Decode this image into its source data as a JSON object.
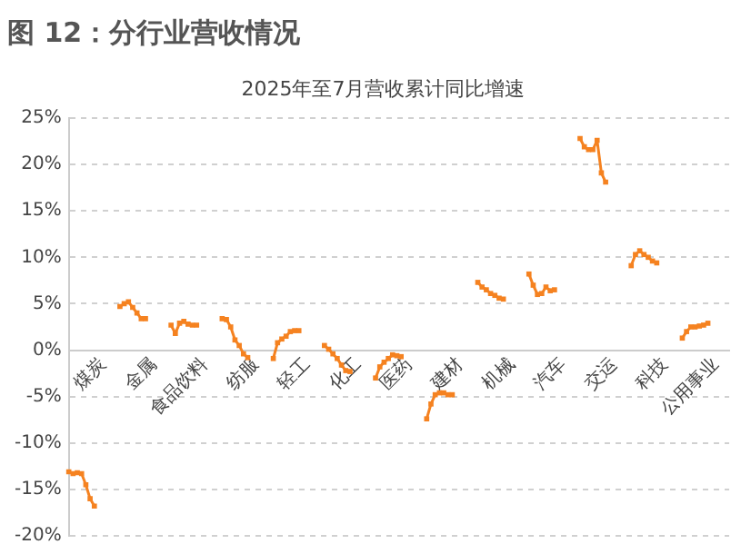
{
  "chart_data": {
    "type": "line",
    "title": "图 12：分行业营收情况",
    "legend": "top",
    "grid": "y",
    "marker": "square",
    "line_style": "solid",
    "categories": [
      null,
      null,
      null,
      null,
      null,
      null,
      null,
      null,
      "煤炭",
      null,
      null,
      null,
      null,
      null,
      null,
      null,
      null,
      null,
      null,
      null,
      "金属",
      null,
      null,
      null,
      null,
      null,
      null,
      null,
      null,
      null,
      null,
      null,
      "食品饮料",
      null,
      null,
      null,
      null,
      null,
      null,
      null,
      null,
      null,
      null,
      null,
      "纺服",
      null,
      null,
      null,
      null,
      null,
      null,
      null,
      null,
      null,
      null,
      null,
      "轻工",
      null,
      null,
      null,
      null,
      null,
      null,
      null,
      null,
      null,
      null,
      null,
      "化工",
      null,
      null,
      null,
      null,
      null,
      null,
      null,
      null,
      null,
      null,
      null,
      "医药",
      null,
      null,
      null,
      null,
      null,
      null,
      null,
      null,
      null,
      null,
      null,
      "建材",
      null,
      null,
      null,
      null,
      null,
      null,
      null,
      null,
      null,
      null,
      null,
      "机械",
      null,
      null,
      null,
      null,
      null,
      null,
      null,
      null,
      null,
      null,
      null,
      "汽车",
      null,
      null,
      null,
      null,
      null,
      null,
      null,
      null,
      null,
      null,
      null,
      "交运",
      null,
      null,
      null,
      null,
      null,
      null,
      null,
      null,
      null,
      null,
      null,
      "科技",
      null,
      null,
      null,
      null,
      null,
      null,
      null,
      null,
      null,
      null,
      null,
      "公用事业",
      null,
      null,
      null
    ],
    "series": [
      {
        "name": "2025年至7月营收累计同比增速",
        "color": "#f58220",
        "values": [
          -13.1,
          -13.3,
          -13.2,
          -13.3,
          -14.5,
          -16.0,
          -16.8,
          null,
          null,
          null,
          null,
          null,
          4.7,
          5.0,
          5.2,
          4.6,
          4.0,
          3.4,
          3.4,
          null,
          null,
          null,
          null,
          null,
          2.7,
          1.8,
          2.9,
          3.1,
          2.8,
          2.7,
          2.7,
          null,
          null,
          null,
          null,
          null,
          3.4,
          3.3,
          2.5,
          1.1,
          0.5,
          -0.4,
          -0.8,
          null,
          null,
          null,
          null,
          null,
          -0.9,
          0.8,
          1.2,
          1.5,
          2.0,
          2.1,
          2.1,
          null,
          null,
          null,
          null,
          null,
          0.5,
          0.1,
          -0.4,
          -0.9,
          -1.6,
          -2.2,
          -2.3,
          null,
          null,
          null,
          null,
          null,
          -3.0,
          -1.8,
          -1.3,
          -0.9,
          -0.5,
          -0.6,
          -0.7,
          null,
          null,
          null,
          null,
          null,
          -7.4,
          -5.8,
          -4.8,
          -4.6,
          -4.6,
          -4.8,
          -4.8,
          null,
          null,
          null,
          null,
          null,
          7.3,
          6.8,
          6.5,
          6.1,
          5.9,
          5.6,
          5.5,
          null,
          null,
          null,
          null,
          null,
          8.2,
          7.0,
          6.0,
          6.1,
          6.8,
          6.4,
          6.5,
          null,
          null,
          null,
          null,
          null,
          22.8,
          21.9,
          21.6,
          21.6,
          22.6,
          19.1,
          18.1,
          null,
          null,
          null,
          null,
          null,
          9.1,
          10.3,
          10.7,
          10.3,
          10.0,
          9.6,
          9.4,
          null,
          null,
          null,
          null,
          null,
          1.3,
          2.0,
          2.5,
          2.5,
          2.6,
          2.7,
          2.9,
          null,
          null,
          null,
          null,
          null
        ]
      }
    ],
    "ylim": [
      -20,
      25
    ],
    "yticks": [
      {
        "value": -20,
        "label": "-20%"
      },
      {
        "value": -15,
        "label": "-15%"
      },
      {
        "value": -10,
        "label": "-10%"
      },
      {
        "value": -5,
        "label": "-5%"
      },
      {
        "value": 0,
        "label": "0%"
      },
      {
        "value": 5,
        "label": "5%"
      },
      {
        "value": 10,
        "label": "10%"
      },
      {
        "value": 15,
        "label": "15%"
      },
      {
        "value": 20,
        "label": "20%"
      },
      {
        "value": 25,
        "label": "25%"
      }
    ]
  }
}
